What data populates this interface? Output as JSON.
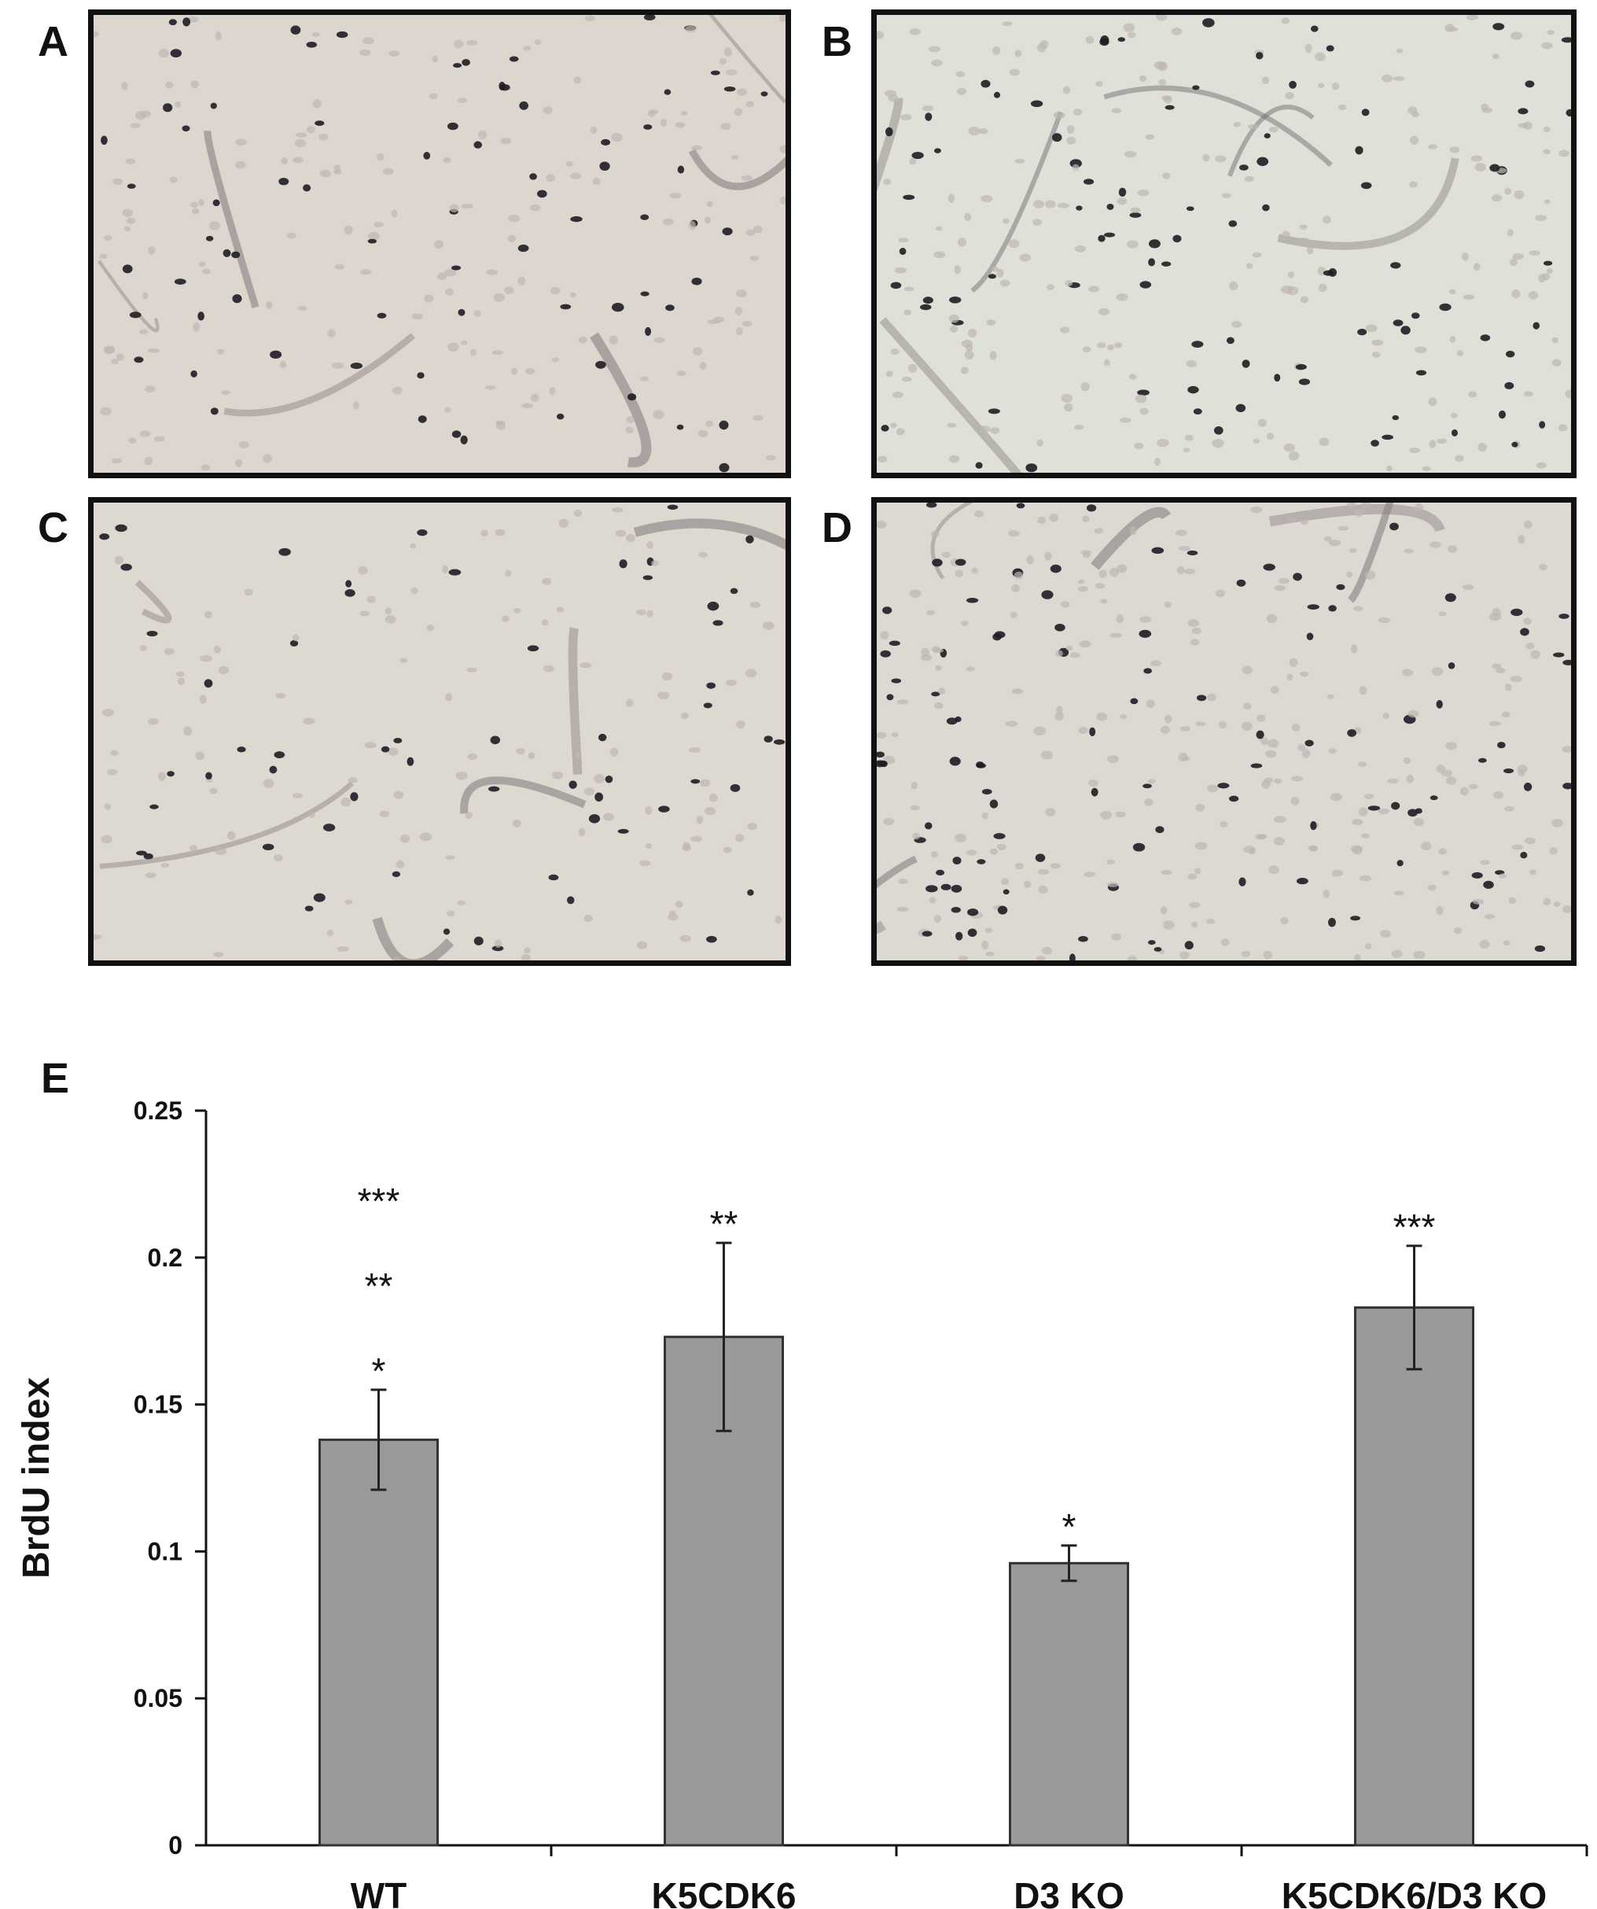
{
  "panels": [
    {
      "letter": "A",
      "tone": "#dcd6cf",
      "density": 0.6
    },
    {
      "letter": "B",
      "tone": "#dfe0d8",
      "density": 0.75
    },
    {
      "letter": "C",
      "tone": "#ddd8d0",
      "density": 0.45
    },
    {
      "letter": "D",
      "tone": "#dcd8d2",
      "density": 0.9
    }
  ],
  "chart_panel_letter": "E",
  "chart_data": {
    "type": "bar",
    "ylabel": "BrdU index",
    "ylim": [
      0,
      0.25
    ],
    "yticks": [
      "0",
      "0.05",
      "0.1",
      "0.15",
      "0.2",
      "0.25"
    ],
    "categories": [
      "WT",
      "K5CDK6",
      "D3 KO",
      "K5CDK6/D3 KO"
    ],
    "values": [
      0.138,
      0.173,
      0.096,
      0.183
    ],
    "errors": [
      0.017,
      0.032,
      0.006,
      0.021
    ],
    "annotations": [
      [
        "***",
        "**",
        "*"
      ],
      [
        "**"
      ],
      [
        "*"
      ],
      [
        "***"
      ]
    ],
    "bar_color": "#999999"
  }
}
